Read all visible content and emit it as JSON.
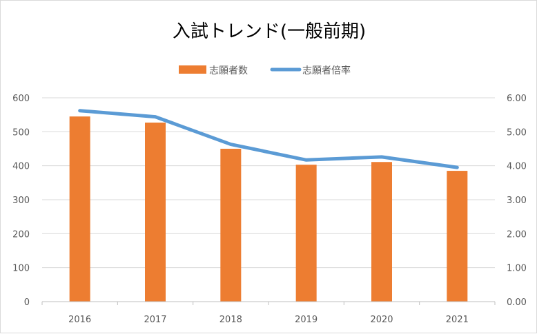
{
  "chart_data": {
    "type": "bar",
    "title": "入試トレンド(一般前期)",
    "categories": [
      "2016",
      "2017",
      "2018",
      "2019",
      "2020",
      "2021"
    ],
    "series": [
      {
        "name": "志願者数",
        "type": "bar",
        "axis": "left",
        "color": "#ED7D31",
        "values": [
          545,
          527,
          450,
          403,
          411,
          385
        ]
      },
      {
        "name": "志願者倍率",
        "type": "line",
        "axis": "right",
        "color": "#5B9BD5",
        "values": [
          5.62,
          5.44,
          4.63,
          4.17,
          4.26,
          3.95
        ]
      }
    ],
    "y_left": {
      "min": 0,
      "max": 600,
      "ticks": [
        "0",
        "100",
        "200",
        "300",
        "400",
        "500",
        "600"
      ]
    },
    "y_right": {
      "min": 0,
      "max": 6,
      "ticks": [
        "0.00",
        "1.00",
        "2.00",
        "3.00",
        "4.00",
        "5.00",
        "6.00"
      ]
    },
    "grid": true,
    "legend_position": "top"
  }
}
